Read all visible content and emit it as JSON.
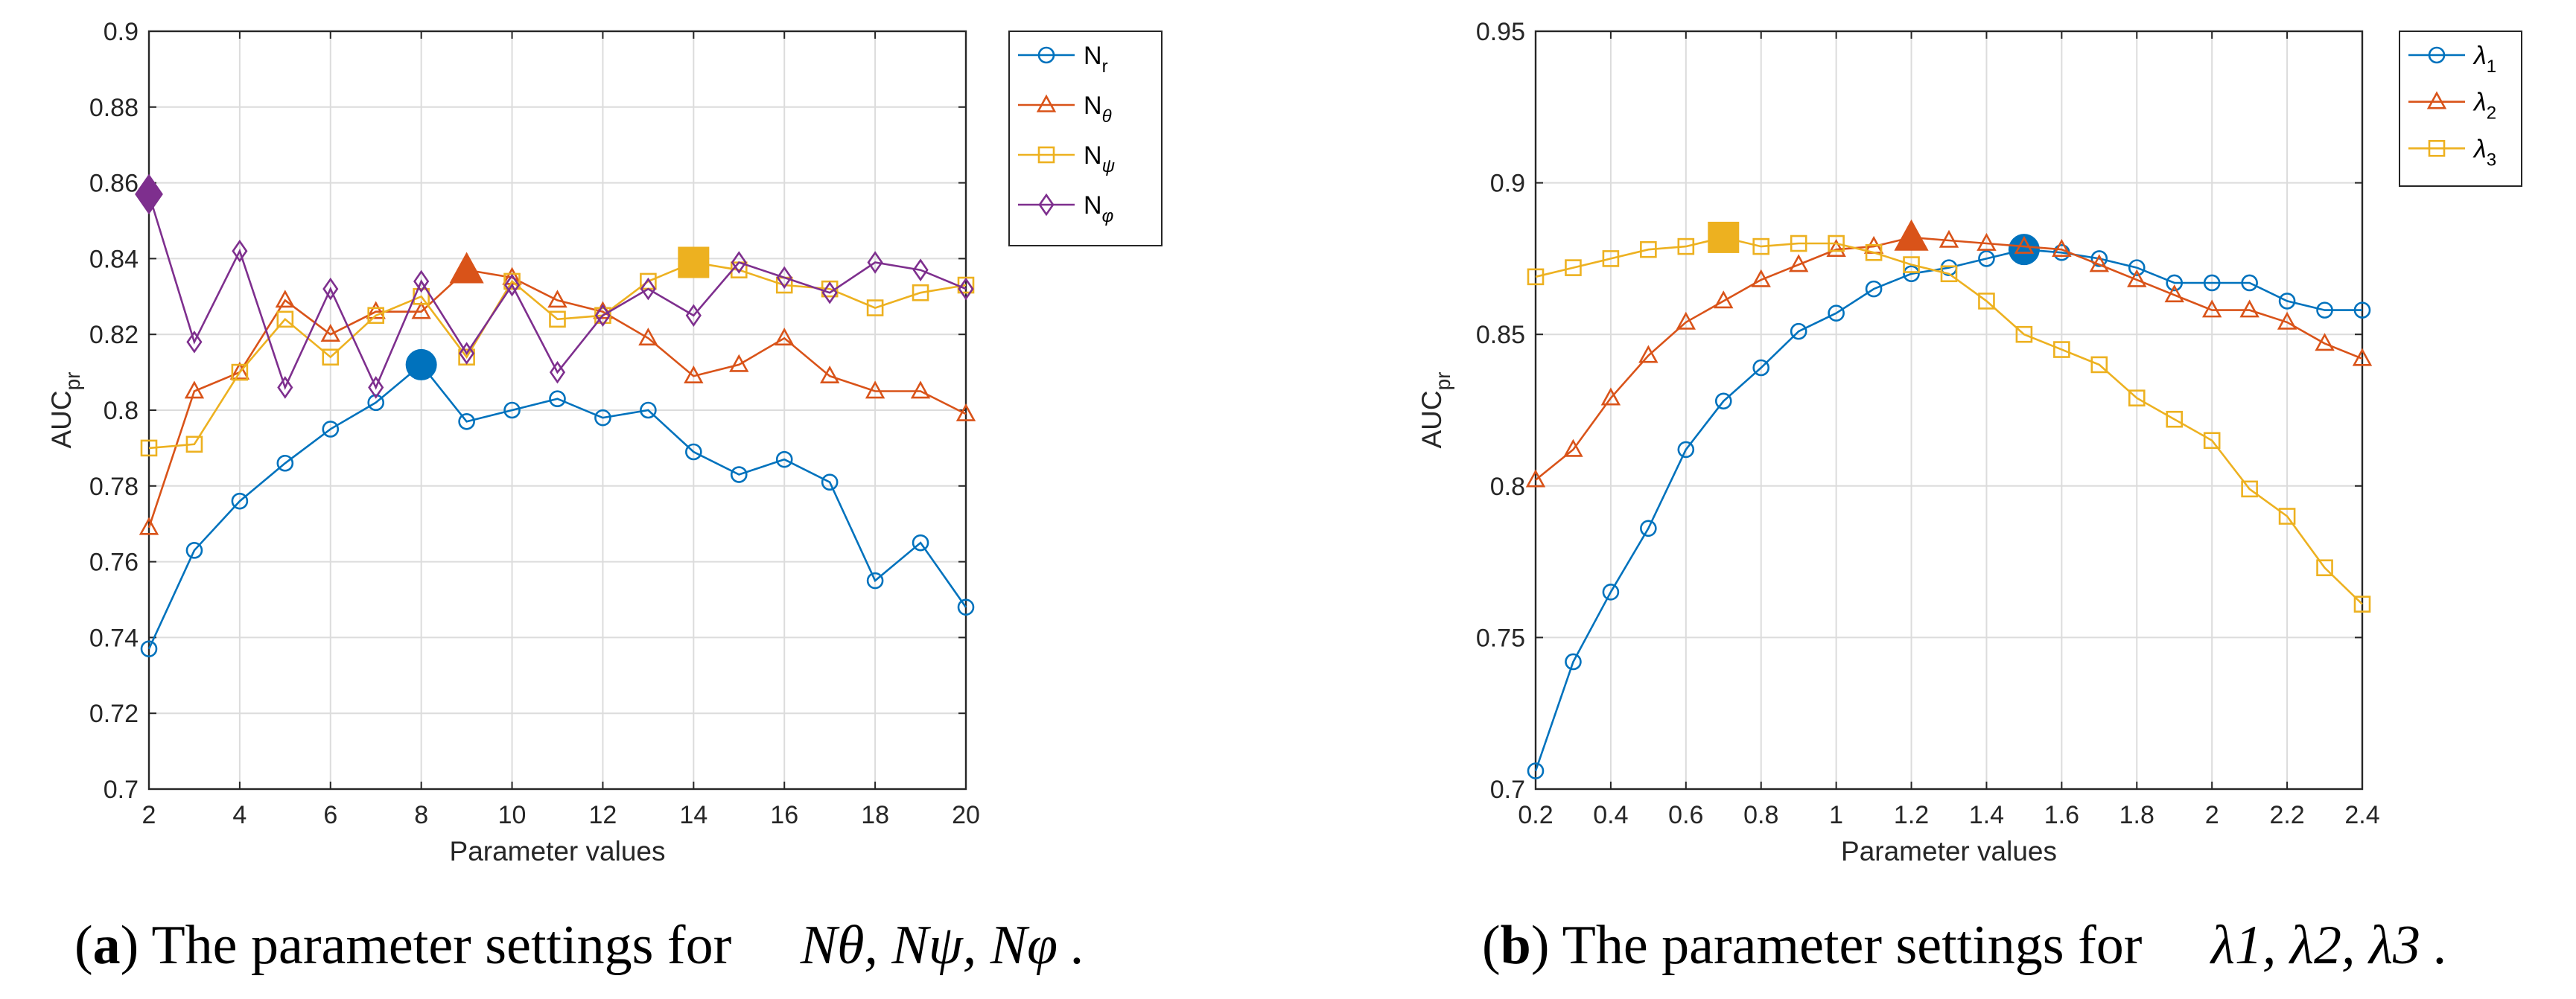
{
  "captions": [
    {
      "tag": "a",
      "text": " The parameter settings for ",
      "symbols": "Nθ, Nψ, Nφ ."
    },
    {
      "tag": "b",
      "text": " The parameter settings for ",
      "symbols": "λ1, λ2, λ3 ."
    }
  ],
  "chart_data": [
    {
      "type": "line",
      "xlabel": "Parameter values",
      "ylabel": "AUCpr",
      "xlim": [
        2,
        20
      ],
      "ylim": [
        0.7,
        0.9
      ],
      "xticks": [
        2,
        4,
        6,
        8,
        10,
        12,
        14,
        16,
        18,
        20
      ],
      "yticks": [
        0.7,
        0.72,
        0.74,
        0.76,
        0.78,
        0.8,
        0.82,
        0.84,
        0.86,
        0.88,
        0.9
      ],
      "grid": true,
      "legend_position": "top-right",
      "series": [
        {
          "name": "Nr",
          "marker": "circle",
          "color": "#0072BD",
          "x": [
            2,
            3,
            4,
            5,
            6,
            7,
            8,
            9,
            10,
            11,
            12,
            13,
            14,
            15,
            16,
            17,
            18,
            19,
            20
          ],
          "y": [
            0.737,
            0.763,
            0.776,
            0.786,
            0.795,
            0.802,
            0.812,
            0.797,
            0.8,
            0.803,
            0.798,
            0.8,
            0.789,
            0.783,
            0.787,
            0.781,
            0.755,
            0.765,
            0.748
          ],
          "best": {
            "x": 8,
            "y": 0.812
          }
        },
        {
          "name": "Nθ",
          "marker": "triangle",
          "color": "#D95319",
          "x": [
            2,
            3,
            4,
            5,
            6,
            7,
            8,
            9,
            10,
            11,
            12,
            13,
            14,
            15,
            16,
            17,
            18,
            19,
            20
          ],
          "y": [
            0.769,
            0.805,
            0.81,
            0.829,
            0.82,
            0.826,
            0.826,
            0.837,
            0.835,
            0.829,
            0.826,
            0.819,
            0.809,
            0.812,
            0.819,
            0.809,
            0.805,
            0.805,
            0.799
          ],
          "best": {
            "x": 9,
            "y": 0.837
          }
        },
        {
          "name": "Nψ",
          "marker": "square",
          "color": "#EDB120",
          "x": [
            2,
            3,
            4,
            5,
            6,
            7,
            8,
            9,
            10,
            11,
            12,
            13,
            14,
            15,
            16,
            17,
            18,
            19,
            20
          ],
          "y": [
            0.79,
            0.791,
            0.81,
            0.824,
            0.814,
            0.825,
            0.83,
            0.814,
            0.834,
            0.824,
            0.825,
            0.834,
            0.839,
            0.837,
            0.833,
            0.832,
            0.827,
            0.831,
            0.833
          ],
          "best": {
            "x": 14,
            "y": 0.839
          }
        },
        {
          "name": "Nφ",
          "marker": "diamond",
          "color": "#7E2F8E",
          "x": [
            2,
            3,
            4,
            5,
            6,
            7,
            8,
            9,
            10,
            11,
            12,
            13,
            14,
            15,
            16,
            17,
            18,
            19,
            20
          ],
          "y": [
            0.857,
            0.818,
            0.842,
            0.806,
            0.832,
            0.806,
            0.834,
            0.815,
            0.833,
            0.81,
            0.825,
            0.832,
            0.825,
            0.839,
            0.835,
            0.831,
            0.839,
            0.837,
            0.832
          ],
          "best": {
            "x": 2,
            "y": 0.857
          }
        }
      ]
    },
    {
      "type": "line",
      "xlabel": "Parameter values",
      "ylabel": "AUCpr",
      "xlim": [
        0.2,
        2.4
      ],
      "ylim": [
        0.7,
        0.95
      ],
      "xticks": [
        0.2,
        0.4,
        0.6,
        0.8,
        1,
        1.2,
        1.4,
        1.6,
        1.8,
        2,
        2.2,
        2.4
      ],
      "yticks": [
        0.7,
        0.75,
        0.8,
        0.85,
        0.9,
        0.95
      ],
      "grid": true,
      "legend_position": "top-right",
      "series": [
        {
          "name": "λ1",
          "marker": "circle",
          "color": "#0072BD",
          "x": [
            0.2,
            0.3,
            0.4,
            0.5,
            0.6,
            0.7,
            0.8,
            0.9,
            1.0,
            1.1,
            1.2,
            1.3,
            1.4,
            1.5,
            1.6,
            1.7,
            1.8,
            1.9,
            2.0,
            2.1,
            2.2,
            2.3,
            2.4
          ],
          "y": [
            0.706,
            0.742,
            0.765,
            0.786,
            0.812,
            0.828,
            0.839,
            0.851,
            0.857,
            0.865,
            0.87,
            0.872,
            0.875,
            0.878,
            0.877,
            0.875,
            0.872,
            0.867,
            0.867,
            0.867,
            0.861,
            0.858,
            0.858
          ],
          "best": {
            "x": 1.5,
            "y": 0.878
          }
        },
        {
          "name": "λ2",
          "marker": "triangle",
          "color": "#D95319",
          "x": [
            0.2,
            0.3,
            0.4,
            0.5,
            0.6,
            0.7,
            0.8,
            0.9,
            1.0,
            1.1,
            1.2,
            1.3,
            1.4,
            1.5,
            1.6,
            1.7,
            1.8,
            1.9,
            2.0,
            2.1,
            2.2,
            2.3,
            2.4
          ],
          "y": [
            0.802,
            0.812,
            0.829,
            0.843,
            0.854,
            0.861,
            0.868,
            0.873,
            0.878,
            0.879,
            0.882,
            0.881,
            0.88,
            0.879,
            0.878,
            0.873,
            0.868,
            0.863,
            0.858,
            0.858,
            0.854,
            0.847,
            0.842
          ],
          "best": {
            "x": 1.2,
            "y": 0.882
          }
        },
        {
          "name": "λ3",
          "marker": "square",
          "color": "#EDB120",
          "x": [
            0.2,
            0.3,
            0.4,
            0.5,
            0.6,
            0.7,
            0.8,
            0.9,
            1.0,
            1.1,
            1.2,
            1.3,
            1.4,
            1.5,
            1.6,
            1.7,
            1.8,
            1.9,
            2.0,
            2.1,
            2.2,
            2.3,
            2.4
          ],
          "y": [
            0.869,
            0.872,
            0.875,
            0.878,
            0.879,
            0.882,
            0.879,
            0.88,
            0.88,
            0.877,
            0.873,
            0.87,
            0.861,
            0.85,
            0.845,
            0.84,
            0.829,
            0.822,
            0.815,
            0.799,
            0.79,
            0.773,
            0.761
          ],
          "best": {
            "x": 0.7,
            "y": 0.882
          }
        }
      ]
    }
  ]
}
